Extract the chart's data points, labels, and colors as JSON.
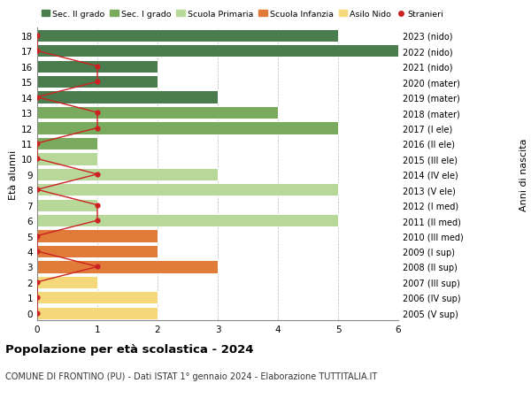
{
  "ages": [
    18,
    17,
    16,
    15,
    14,
    13,
    12,
    11,
    10,
    9,
    8,
    7,
    6,
    5,
    4,
    3,
    2,
    1,
    0
  ],
  "right_labels": [
    "2005 (V sup)",
    "2006 (IV sup)",
    "2007 (III sup)",
    "2008 (II sup)",
    "2009 (I sup)",
    "2010 (III med)",
    "2011 (II med)",
    "2012 (I med)",
    "2013 (V ele)",
    "2014 (IV ele)",
    "2015 (III ele)",
    "2016 (II ele)",
    "2017 (I ele)",
    "2018 (mater)",
    "2019 (mater)",
    "2020 (mater)",
    "2021 (nido)",
    "2022 (nido)",
    "2023 (nido)"
  ],
  "bar_values": [
    5,
    6,
    2,
    2,
    3,
    4,
    5,
    1,
    1,
    3,
    5,
    1,
    5,
    2,
    2,
    3,
    1,
    2,
    2
  ],
  "bar_colors": [
    "#4a7c4e",
    "#4a7c4e",
    "#4a7c4e",
    "#4a7c4e",
    "#4a7c4e",
    "#7aaa5e",
    "#7aaa5e",
    "#7aaa5e",
    "#b8d89a",
    "#b8d89a",
    "#b8d89a",
    "#b8d89a",
    "#b8d89a",
    "#e07b3a",
    "#e07b3a",
    "#e07b3a",
    "#f5d87a",
    "#f5d87a",
    "#f5d87a"
  ],
  "stranieri_values": [
    0,
    0,
    1,
    1,
    0,
    1,
    1,
    0,
    0,
    1,
    0,
    1,
    1,
    0,
    0,
    1,
    0,
    0,
    0
  ],
  "color_sec2": "#4a7c4e",
  "color_sec1": "#7aaa5e",
  "color_primaria": "#b8d89a",
  "color_infanzia": "#e07b3a",
  "color_nido": "#f5d87a",
  "color_stranieri": "#cc2222",
  "title": "Popolazione per età scolastica - 2024",
  "subtitle": "COMUNE DI FRONTINO (PU) - Dati ISTAT 1° gennaio 2024 - Elaborazione TUTTITALIA.IT",
  "ylabel_left": "Età alunni",
  "ylabel_right": "Anni di nascita",
  "xlim": [
    0,
    6
  ],
  "legend_labels": [
    "Sec. II grado",
    "Sec. I grado",
    "Scuola Primaria",
    "Scuola Infanzia",
    "Asilo Nido",
    "Stranieri"
  ]
}
